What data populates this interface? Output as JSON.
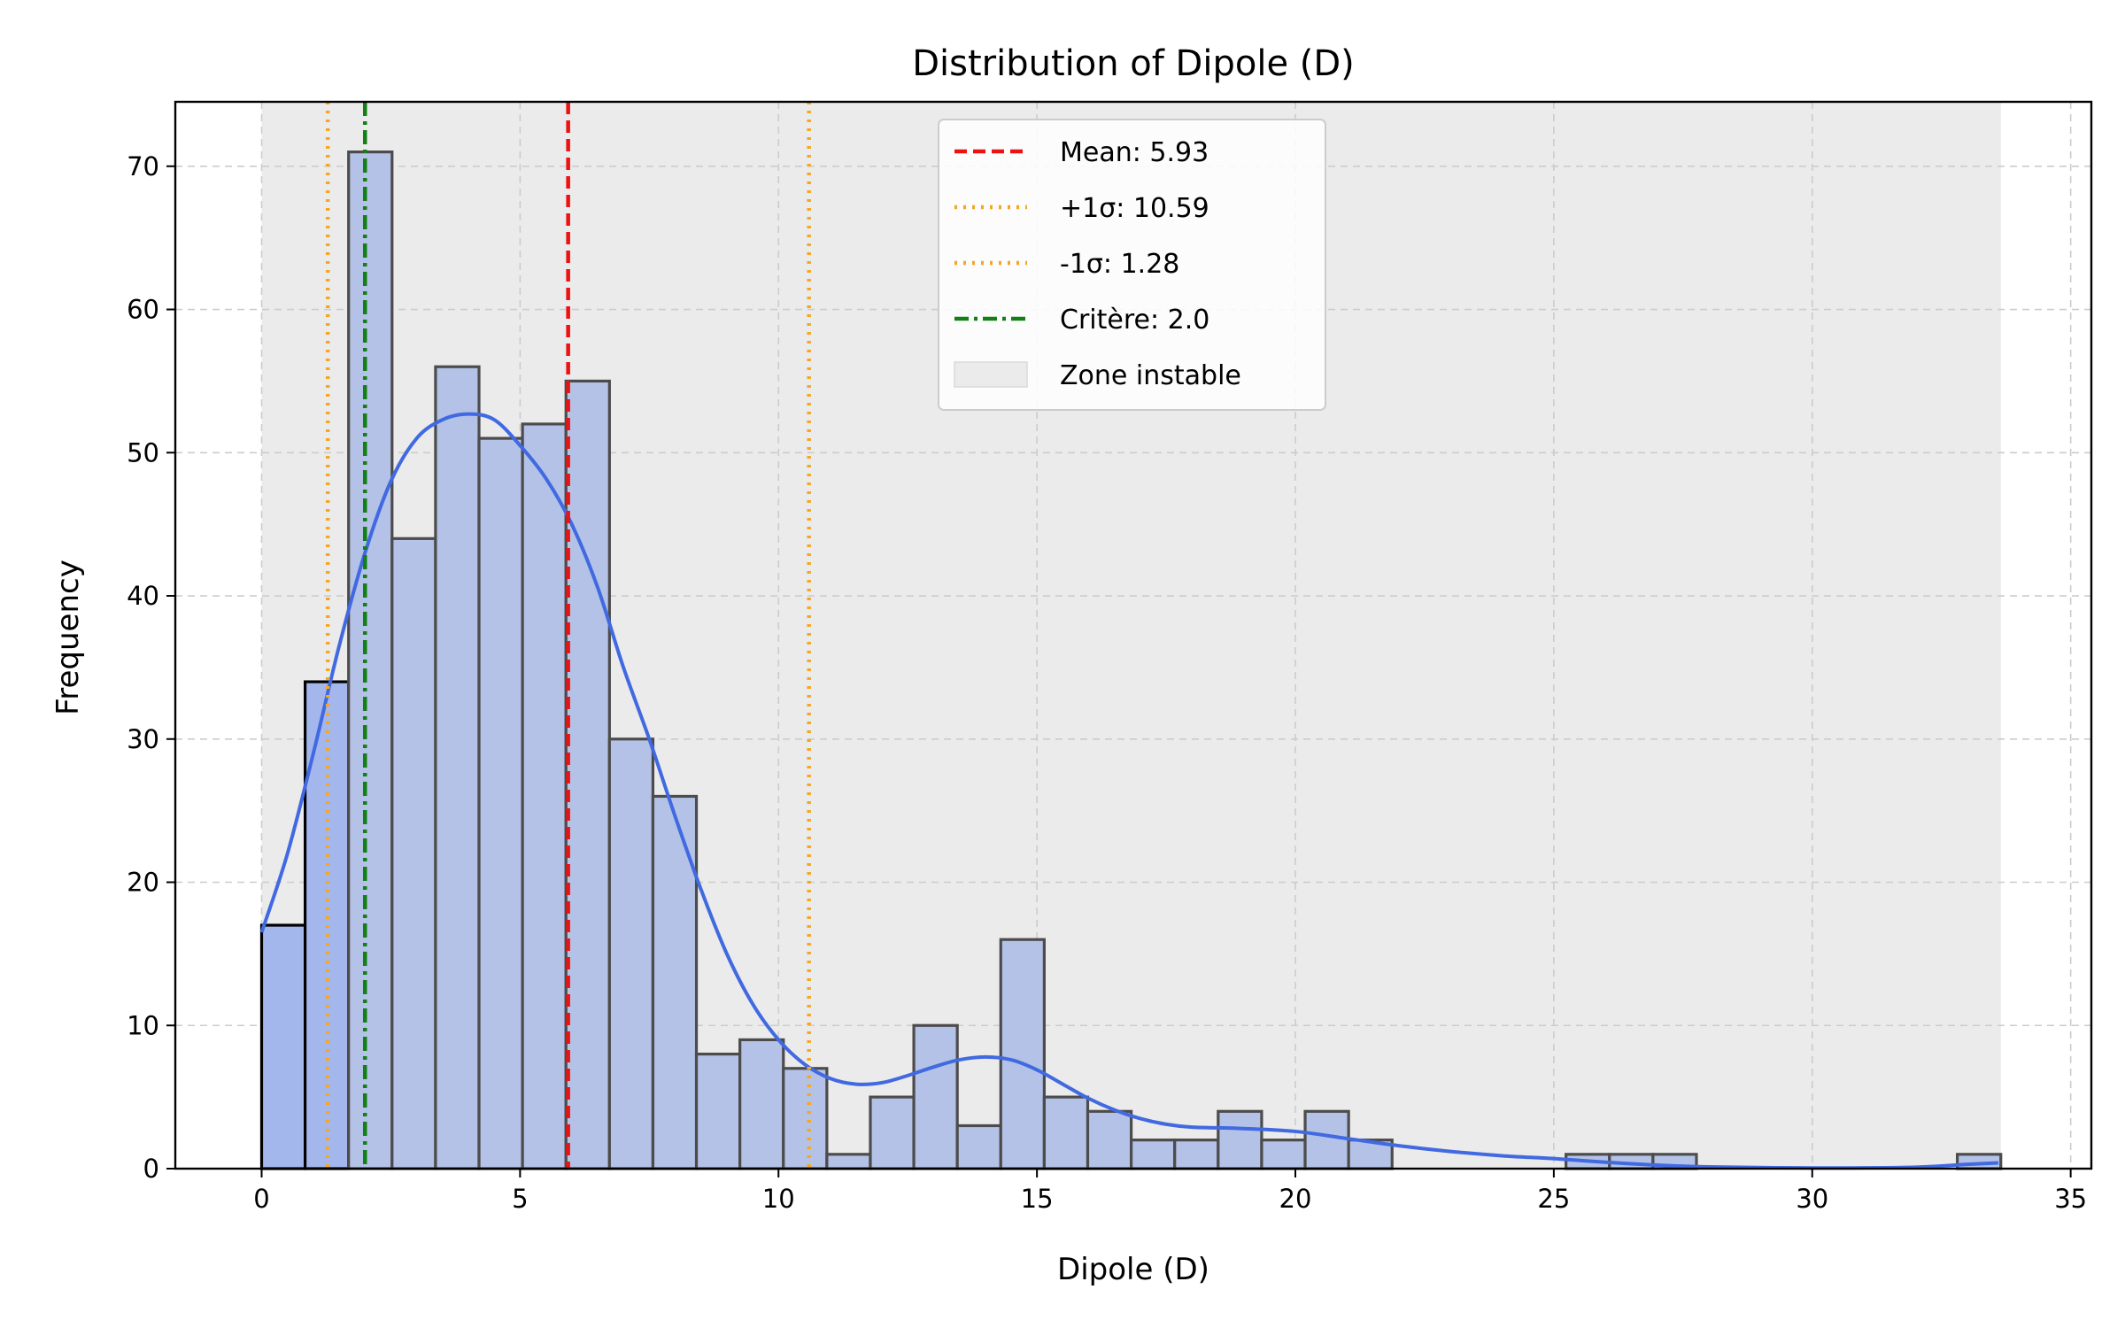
{
  "chart_data": {
    "type": "bar",
    "title": "Distribution of Dipole (D)",
    "xlabel": "Dipole (D)",
    "ylabel": "Frequency",
    "xlim": [
      -1.67,
      35.4
    ],
    "ylim": [
      0,
      74.5
    ],
    "xticks": [
      0,
      5,
      10,
      15,
      20,
      25,
      30,
      35
    ],
    "yticks": [
      0,
      10,
      20,
      30,
      40,
      50,
      60,
      70
    ],
    "grid": true,
    "legend_position": "top-center",
    "bins": {
      "start": 0.0,
      "width": 0.8412,
      "counts": [
        17,
        34,
        71,
        44,
        56,
        51,
        52,
        55,
        30,
        26,
        8,
        9,
        7,
        1,
        5,
        10,
        3,
        16,
        5,
        4,
        2,
        2,
        4,
        2,
        4,
        2,
        0,
        0,
        0,
        0,
        1,
        1,
        1,
        0,
        0,
        0,
        0,
        0,
        0,
        1
      ]
    },
    "unstable_bins": 2,
    "kde": {
      "x": [
        0,
        0.5,
        1,
        1.5,
        2,
        2.5,
        3,
        3.5,
        4,
        4.5,
        5,
        5.5,
        6,
        6.5,
        7,
        7.5,
        8,
        8.5,
        9,
        9.5,
        10,
        10.5,
        11,
        11.5,
        12,
        12.5,
        13,
        13.5,
        14,
        14.5,
        15,
        15.5,
        16,
        16.5,
        17,
        17.5,
        18,
        19,
        20,
        21,
        22,
        23,
        24,
        25,
        26,
        27,
        28,
        30,
        32,
        33,
        33.6
      ],
      "y": [
        16.5,
        22,
        29,
        36.5,
        43,
        48,
        51,
        52.3,
        52.7,
        52.3,
        50.5,
        48.2,
        45,
        40.6,
        35,
        30,
        24.6,
        19.5,
        15,
        11.5,
        9,
        7.3,
        6.3,
        5.9,
        6,
        6.5,
        7.1,
        7.6,
        7.8,
        7.6,
        6.9,
        5.9,
        4.9,
        4.1,
        3.5,
        3.1,
        2.9,
        2.8,
        2.6,
        2.1,
        1.6,
        1.2,
        0.9,
        0.7,
        0.45,
        0.25,
        0.12,
        0.05,
        0.1,
        0.3,
        0.4
      ]
    },
    "unstable_zone": {
      "label": "Zone instable",
      "x_from": 0,
      "x_to": 33.65
    },
    "reference_lines": [
      {
        "label": "Mean: 5.93",
        "x": 5.93,
        "color": "#ee1111",
        "style": "dashed"
      },
      {
        "label": "+1σ: 10.59",
        "x": 10.59,
        "color": "#f5a623",
        "style": "dotted"
      },
      {
        "label": "-1σ: 1.28",
        "x": 1.28,
        "color": "#f5a623",
        "style": "dotted"
      },
      {
        "label": "Critère: 2.0",
        "x": 2.0,
        "color": "#138013",
        "style": "dashdot"
      }
    ],
    "colors": {
      "bar_fill": "#b3c2e6",
      "bar_fill_unstable": "#a3b7ec",
      "bar_edge": "#4c4c4c",
      "bar_edge_unstable": "#000000",
      "kde_line": "#4169e1",
      "zone_fill": "#ebebeb",
      "grid": "#cccccc"
    }
  }
}
